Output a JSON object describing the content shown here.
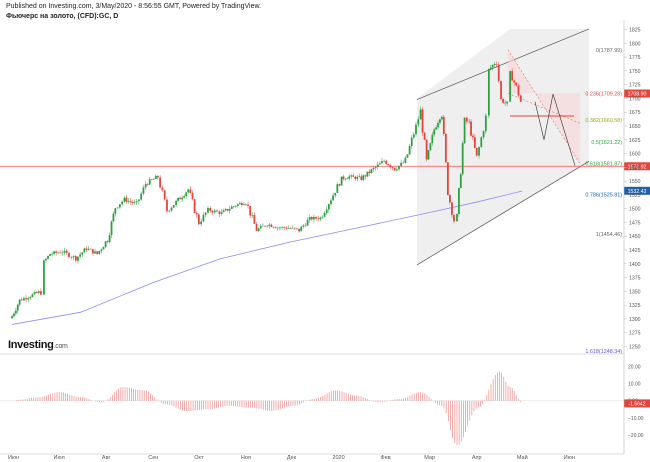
{
  "header": {
    "published": "Published on Investing.com, 3/May/2020 - 8:56:55 GMT, Powered by TradingView.",
    "symbol": "Фьючерс на золото, (CFD):GC, D"
  },
  "brand": {
    "name": "Investing",
    "suffix": ".com"
  },
  "colors": {
    "up": "#2ea043",
    "down": "#e0463e",
    "ma": "#8c8cf0",
    "hline": "#ff4d4d",
    "channel": "#555555",
    "macd": "#f08a8a"
  },
  "chart_data": [
    {
      "type": "candlestick",
      "title": "Фьючерс на золото, (CFD):GC, D",
      "x_ticks": [
        "Июн",
        "Июл",
        "Авг",
        "Сен",
        "Окт",
        "Ноя",
        "Дек",
        "2020",
        "Фев",
        "Мар",
        "Апр",
        "Май",
        "Июн"
      ],
      "y_ticks": [
        1250,
        1275,
        1300,
        1325,
        1350,
        1375,
        1400,
        1425,
        1450,
        1475,
        1500,
        1525,
        1550,
        1575,
        1600,
        1625,
        1650,
        1675,
        1700,
        1725,
        1750,
        1775,
        1800,
        1825
      ],
      "ylim": [
        1240,
        1835
      ],
      "series": [
        {
          "name": "",
          "values": [
            {
              "date": "2019-05-31",
              "close": 1305
            },
            {
              "date": "2019-06-05",
              "close": 1334
            },
            {
              "date": "2019-06-12",
              "close": 1342
            },
            {
              "date": "2019-06-19",
              "close": 1350
            },
            {
              "date": "2019-06-21",
              "close": 1403
            },
            {
              "date": "2019-06-25",
              "close": 1418
            },
            {
              "date": "2019-07-03",
              "close": 1422
            },
            {
              "date": "2019-07-12",
              "close": 1410
            },
            {
              "date": "2019-07-19",
              "close": 1428
            },
            {
              "date": "2019-07-26",
              "close": 1418
            },
            {
              "date": "2019-08-02",
              "close": 1445
            },
            {
              "date": "2019-08-07",
              "close": 1502
            },
            {
              "date": "2019-08-13",
              "close": 1517
            },
            {
              "date": "2019-08-21",
              "close": 1508
            },
            {
              "date": "2019-08-27",
              "close": 1545
            },
            {
              "date": "2019-09-04",
              "close": 1558
            },
            {
              "date": "2019-09-10",
              "close": 1496
            },
            {
              "date": "2019-09-16",
              "close": 1512
            },
            {
              "date": "2019-09-24",
              "close": 1535
            },
            {
              "date": "2019-10-01",
              "close": 1474
            },
            {
              "date": "2019-10-07",
              "close": 1498
            },
            {
              "date": "2019-10-16",
              "close": 1492
            },
            {
              "date": "2019-10-24",
              "close": 1505
            },
            {
              "date": "2019-11-01",
              "close": 1513
            },
            {
              "date": "2019-11-08",
              "close": 1461
            },
            {
              "date": "2019-11-15",
              "close": 1472
            },
            {
              "date": "2019-11-22",
              "close": 1466
            },
            {
              "date": "2019-11-29",
              "close": 1465
            },
            {
              "date": "2019-12-06",
              "close": 1461
            },
            {
              "date": "2019-12-13",
              "close": 1482
            },
            {
              "date": "2019-12-20",
              "close": 1483
            },
            {
              "date": "2019-12-27",
              "close": 1518
            },
            {
              "date": "2020-01-03",
              "close": 1555
            },
            {
              "date": "2020-01-08",
              "close": 1558
            },
            {
              "date": "2020-01-16",
              "close": 1555
            },
            {
              "date": "2020-01-24",
              "close": 1572
            },
            {
              "date": "2020-01-31",
              "close": 1587
            },
            {
              "date": "2020-02-07",
              "close": 1572
            },
            {
              "date": "2020-02-14",
              "close": 1586
            },
            {
              "date": "2020-02-21",
              "close": 1650
            },
            {
              "date": "2020-02-24",
              "close": 1676
            },
            {
              "date": "2020-02-28",
              "close": 1585
            },
            {
              "date": "2020-03-04",
              "close": 1644
            },
            {
              "date": "2020-03-09",
              "close": 1675
            },
            {
              "date": "2020-03-13",
              "close": 1530
            },
            {
              "date": "2020-03-17",
              "close": 1478
            },
            {
              "date": "2020-03-19",
              "close": 1482
            },
            {
              "date": "2020-03-24",
              "close": 1662
            },
            {
              "date": "2020-03-27",
              "close": 1654
            },
            {
              "date": "2020-04-01",
              "close": 1592
            },
            {
              "date": "2020-04-07",
              "close": 1665
            },
            {
              "date": "2020-04-09",
              "close": 1752
            },
            {
              "date": "2020-04-14",
              "close": 1768
            },
            {
              "date": "2020-04-17",
              "close": 1698
            },
            {
              "date": "2020-04-21",
              "close": 1688
            },
            {
              "date": "2020-04-23",
              "close": 1745
            },
            {
              "date": "2020-04-27",
              "close": 1721
            },
            {
              "date": "2020-04-30",
              "close": 1694
            },
            {
              "date": "2020-05-01",
              "close": 1708
            }
          ]
        }
      ],
      "moving_average": [
        {
          "date": "2019-05-31",
          "value": 1290
        },
        {
          "date": "2019-07-15",
          "value": 1312
        },
        {
          "date": "2019-09-01",
          "value": 1366
        },
        {
          "date": "2019-10-15",
          "value": 1409
        },
        {
          "date": "2019-12-01",
          "value": 1440
        },
        {
          "date": "2020-01-15",
          "value": 1466
        },
        {
          "date": "2020-03-01",
          "value": 1493
        },
        {
          "date": "2020-04-01",
          "value": 1512
        },
        {
          "date": "2020-05-01",
          "value": 1532
        }
      ],
      "price_labels": [
        {
          "value": 1708.9,
          "text": "1708.90",
          "color": "#e0463e"
        },
        {
          "value": 1576.92,
          "text": "1576.92",
          "color": "#e0463e"
        },
        {
          "value": 1532.43,
          "text": "1532.43",
          "color": "#1f5fa8"
        }
      ],
      "horizontal_line": 1577,
      "fibonacci": [
        {
          "level": "0",
          "value": 1787.99,
          "text": "0(1787.99)",
          "color": "#666666"
        },
        {
          "level": "0.236",
          "value": 1709.28,
          "text": "0.236(1709.28)",
          "color": "#e0463e"
        },
        {
          "level": "0.382",
          "value": 1660.58,
          "text": "0.382(1660.58)",
          "color": "#9aa51b"
        },
        {
          "level": "0.5",
          "value": 1621.22,
          "text": "0.5(1621.22)",
          "color": "#2ea043"
        },
        {
          "level": "0.618",
          "value": 1581.87,
          "text": "0.618(1581.87)",
          "color": "#2ea043"
        },
        {
          "level": "0.786",
          "value": 1525.81,
          "text": "0.786(1525.81)",
          "color": "#1f5fa8"
        },
        {
          "level": "1",
          "value": 1454.46,
          "text": "1(1454.46)",
          "color": "#666666"
        },
        {
          "level": "1.618",
          "value": 1248.34,
          "text": "1.618(1248.34)",
          "color": "#6a4fd8"
        }
      ],
      "grid": false
    },
    {
      "type": "bar",
      "title": "",
      "y_ticks": [
        20,
        10,
        0,
        -10,
        -20
      ],
      "ylim": [
        -30,
        25
      ],
      "current_value_label": "-1.5642",
      "series": [
        {
          "name": "",
          "values": [
            {
              "date": "2019-06-03",
              "value": 0.5
            },
            {
              "date": "2019-06-17",
              "value": 2
            },
            {
              "date": "2019-07-01",
              "value": 5
            },
            {
              "date": "2019-07-15",
              "value": 2
            },
            {
              "date": "2019-07-29",
              "value": -1
            },
            {
              "date": "2019-08-12",
              "value": 8
            },
            {
              "date": "2019-08-26",
              "value": 6
            },
            {
              "date": "2019-09-09",
              "value": -2
            },
            {
              "date": "2019-09-23",
              "value": -6
            },
            {
              "date": "2019-10-07",
              "value": -5
            },
            {
              "date": "2019-10-21",
              "value": -3
            },
            {
              "date": "2019-11-04",
              "value": -4
            },
            {
              "date": "2019-11-18",
              "value": -6
            },
            {
              "date": "2019-12-02",
              "value": -3
            },
            {
              "date": "2019-12-16",
              "value": 1
            },
            {
              "date": "2019-12-30",
              "value": 6
            },
            {
              "date": "2020-01-13",
              "value": 3
            },
            {
              "date": "2020-01-27",
              "value": -1
            },
            {
              "date": "2020-02-10",
              "value": 1
            },
            {
              "date": "2020-02-24",
              "value": 5
            },
            {
              "date": "2020-03-09",
              "value": -3
            },
            {
              "date": "2020-03-19",
              "value": -26
            },
            {
              "date": "2020-04-02",
              "value": -4
            },
            {
              "date": "2020-04-16",
              "value": 17
            },
            {
              "date": "2020-04-23",
              "value": 8
            },
            {
              "date": "2020-05-01",
              "value": -1.5642
            }
          ]
        }
      ]
    }
  ]
}
